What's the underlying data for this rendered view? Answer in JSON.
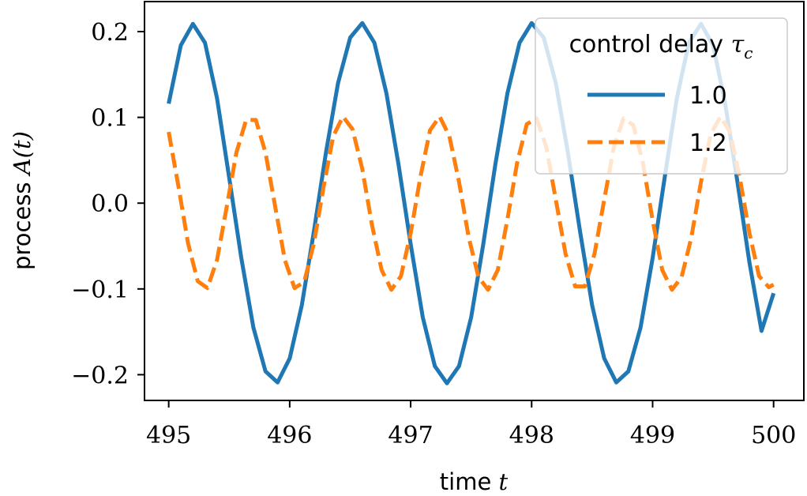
{
  "chart_data": {
    "type": "line",
    "xlabel": "time t",
    "xlabel_parts": {
      "text": "time ",
      "math": "t"
    },
    "ylabel": "process A(t)",
    "ylabel_parts": {
      "text": "process ",
      "math": "A(t)"
    },
    "xlim": [
      494.8,
      500.25
    ],
    "ylim": [
      -0.23,
      0.235
    ],
    "x_ticks": [
      495,
      496,
      497,
      498,
      499,
      500
    ],
    "x_tick_labels": [
      "495",
      "496",
      "497",
      "498",
      "499",
      "500"
    ],
    "y_ticks": [
      0.2,
      0.1,
      0.0,
      -0.1,
      -0.2
    ],
    "y_tick_labels": [
      "0.2",
      "0.1",
      "0.0",
      "−0.1",
      "−0.2"
    ],
    "grid": false,
    "legend": {
      "title": "control delay τc",
      "title_parts": {
        "text": "control delay ",
        "math": "τ",
        "sub": "c"
      },
      "placement": "top-right"
    },
    "series": [
      {
        "name": "1.0",
        "style": "solid",
        "color": "#1f77b4",
        "x": [
          495.0,
          495.1,
          495.2,
          495.3,
          495.4,
          495.5,
          495.6,
          495.7,
          495.8,
          495.9,
          496.0,
          496.1,
          496.2,
          496.3,
          496.4,
          496.5,
          496.6,
          496.7,
          496.8,
          496.9,
          497.0,
          497.1,
          497.2,
          497.3,
          497.4,
          497.5,
          497.6,
          497.7,
          497.8,
          497.9,
          498.0,
          498.1,
          498.2,
          498.3,
          498.4,
          498.5,
          498.6,
          498.7,
          498.8,
          498.9,
          499.0,
          499.1,
          499.2,
          499.3,
          499.4,
          499.5,
          499.6,
          499.7,
          499.8,
          499.9,
          500.0
        ],
        "y": [
          0.116,
          0.184,
          0.209,
          0.187,
          0.122,
          0.03,
          -0.064,
          -0.145,
          -0.196,
          -0.209,
          -0.181,
          -0.119,
          -0.033,
          0.059,
          0.14,
          0.193,
          0.21,
          0.187,
          0.128,
          0.045,
          -0.048,
          -0.133,
          -0.19,
          -0.21,
          -0.19,
          -0.133,
          -0.048,
          0.045,
          0.128,
          0.187,
          0.21,
          0.193,
          0.14,
          0.059,
          -0.033,
          -0.119,
          -0.181,
          -0.209,
          -0.196,
          -0.145,
          -0.064,
          0.03,
          0.122,
          0.187,
          0.209,
          0.184,
          0.116,
          0.026,
          -0.069,
          -0.149,
          -0.105
        ]
      },
      {
        "name": "1.2",
        "style": "dashed",
        "color": "#ff7f0e",
        "x": [
          495.0,
          495.08,
          495.16,
          495.24,
          495.32,
          495.4,
          495.48,
          495.56,
          495.64,
          495.72,
          495.8,
          495.88,
          495.96,
          496.04,
          496.12,
          496.2,
          496.28,
          496.36,
          496.44,
          496.52,
          496.6,
          496.68,
          496.76,
          496.84,
          496.92,
          497.0,
          497.08,
          497.16,
          497.24,
          497.32,
          497.4,
          497.48,
          497.56,
          497.64,
          497.72,
          497.8,
          497.88,
          497.96,
          498.04,
          498.12,
          498.2,
          498.28,
          498.36,
          498.44,
          498.52,
          498.6,
          498.68,
          498.76,
          498.84,
          498.92,
          499.0,
          499.08,
          499.16,
          499.24,
          499.32,
          499.4,
          499.48,
          499.56,
          499.64,
          499.72,
          499.8,
          499.88,
          499.96,
          500.0
        ],
        "y": [
          0.083,
          0.02,
          -0.047,
          -0.091,
          -0.099,
          -0.066,
          -0.004,
          0.059,
          0.097,
          0.097,
          0.059,
          -0.004,
          -0.066,
          -0.099,
          -0.092,
          -0.047,
          0.019,
          0.078,
          0.101,
          0.086,
          0.04,
          -0.025,
          -0.078,
          -0.101,
          -0.085,
          -0.035,
          0.03,
          0.085,
          0.101,
          0.078,
          0.025,
          -0.04,
          -0.086,
          -0.101,
          -0.078,
          -0.019,
          0.047,
          0.092,
          0.099,
          0.066,
          0.004,
          -0.059,
          -0.097,
          -0.097,
          -0.059,
          0.004,
          0.066,
          0.099,
          0.091,
          0.047,
          -0.02,
          -0.078,
          -0.101,
          -0.086,
          -0.04,
          0.025,
          0.08,
          0.101,
          0.083,
          0.03,
          -0.035,
          -0.085,
          -0.098,
          -0.095
        ]
      }
    ]
  }
}
